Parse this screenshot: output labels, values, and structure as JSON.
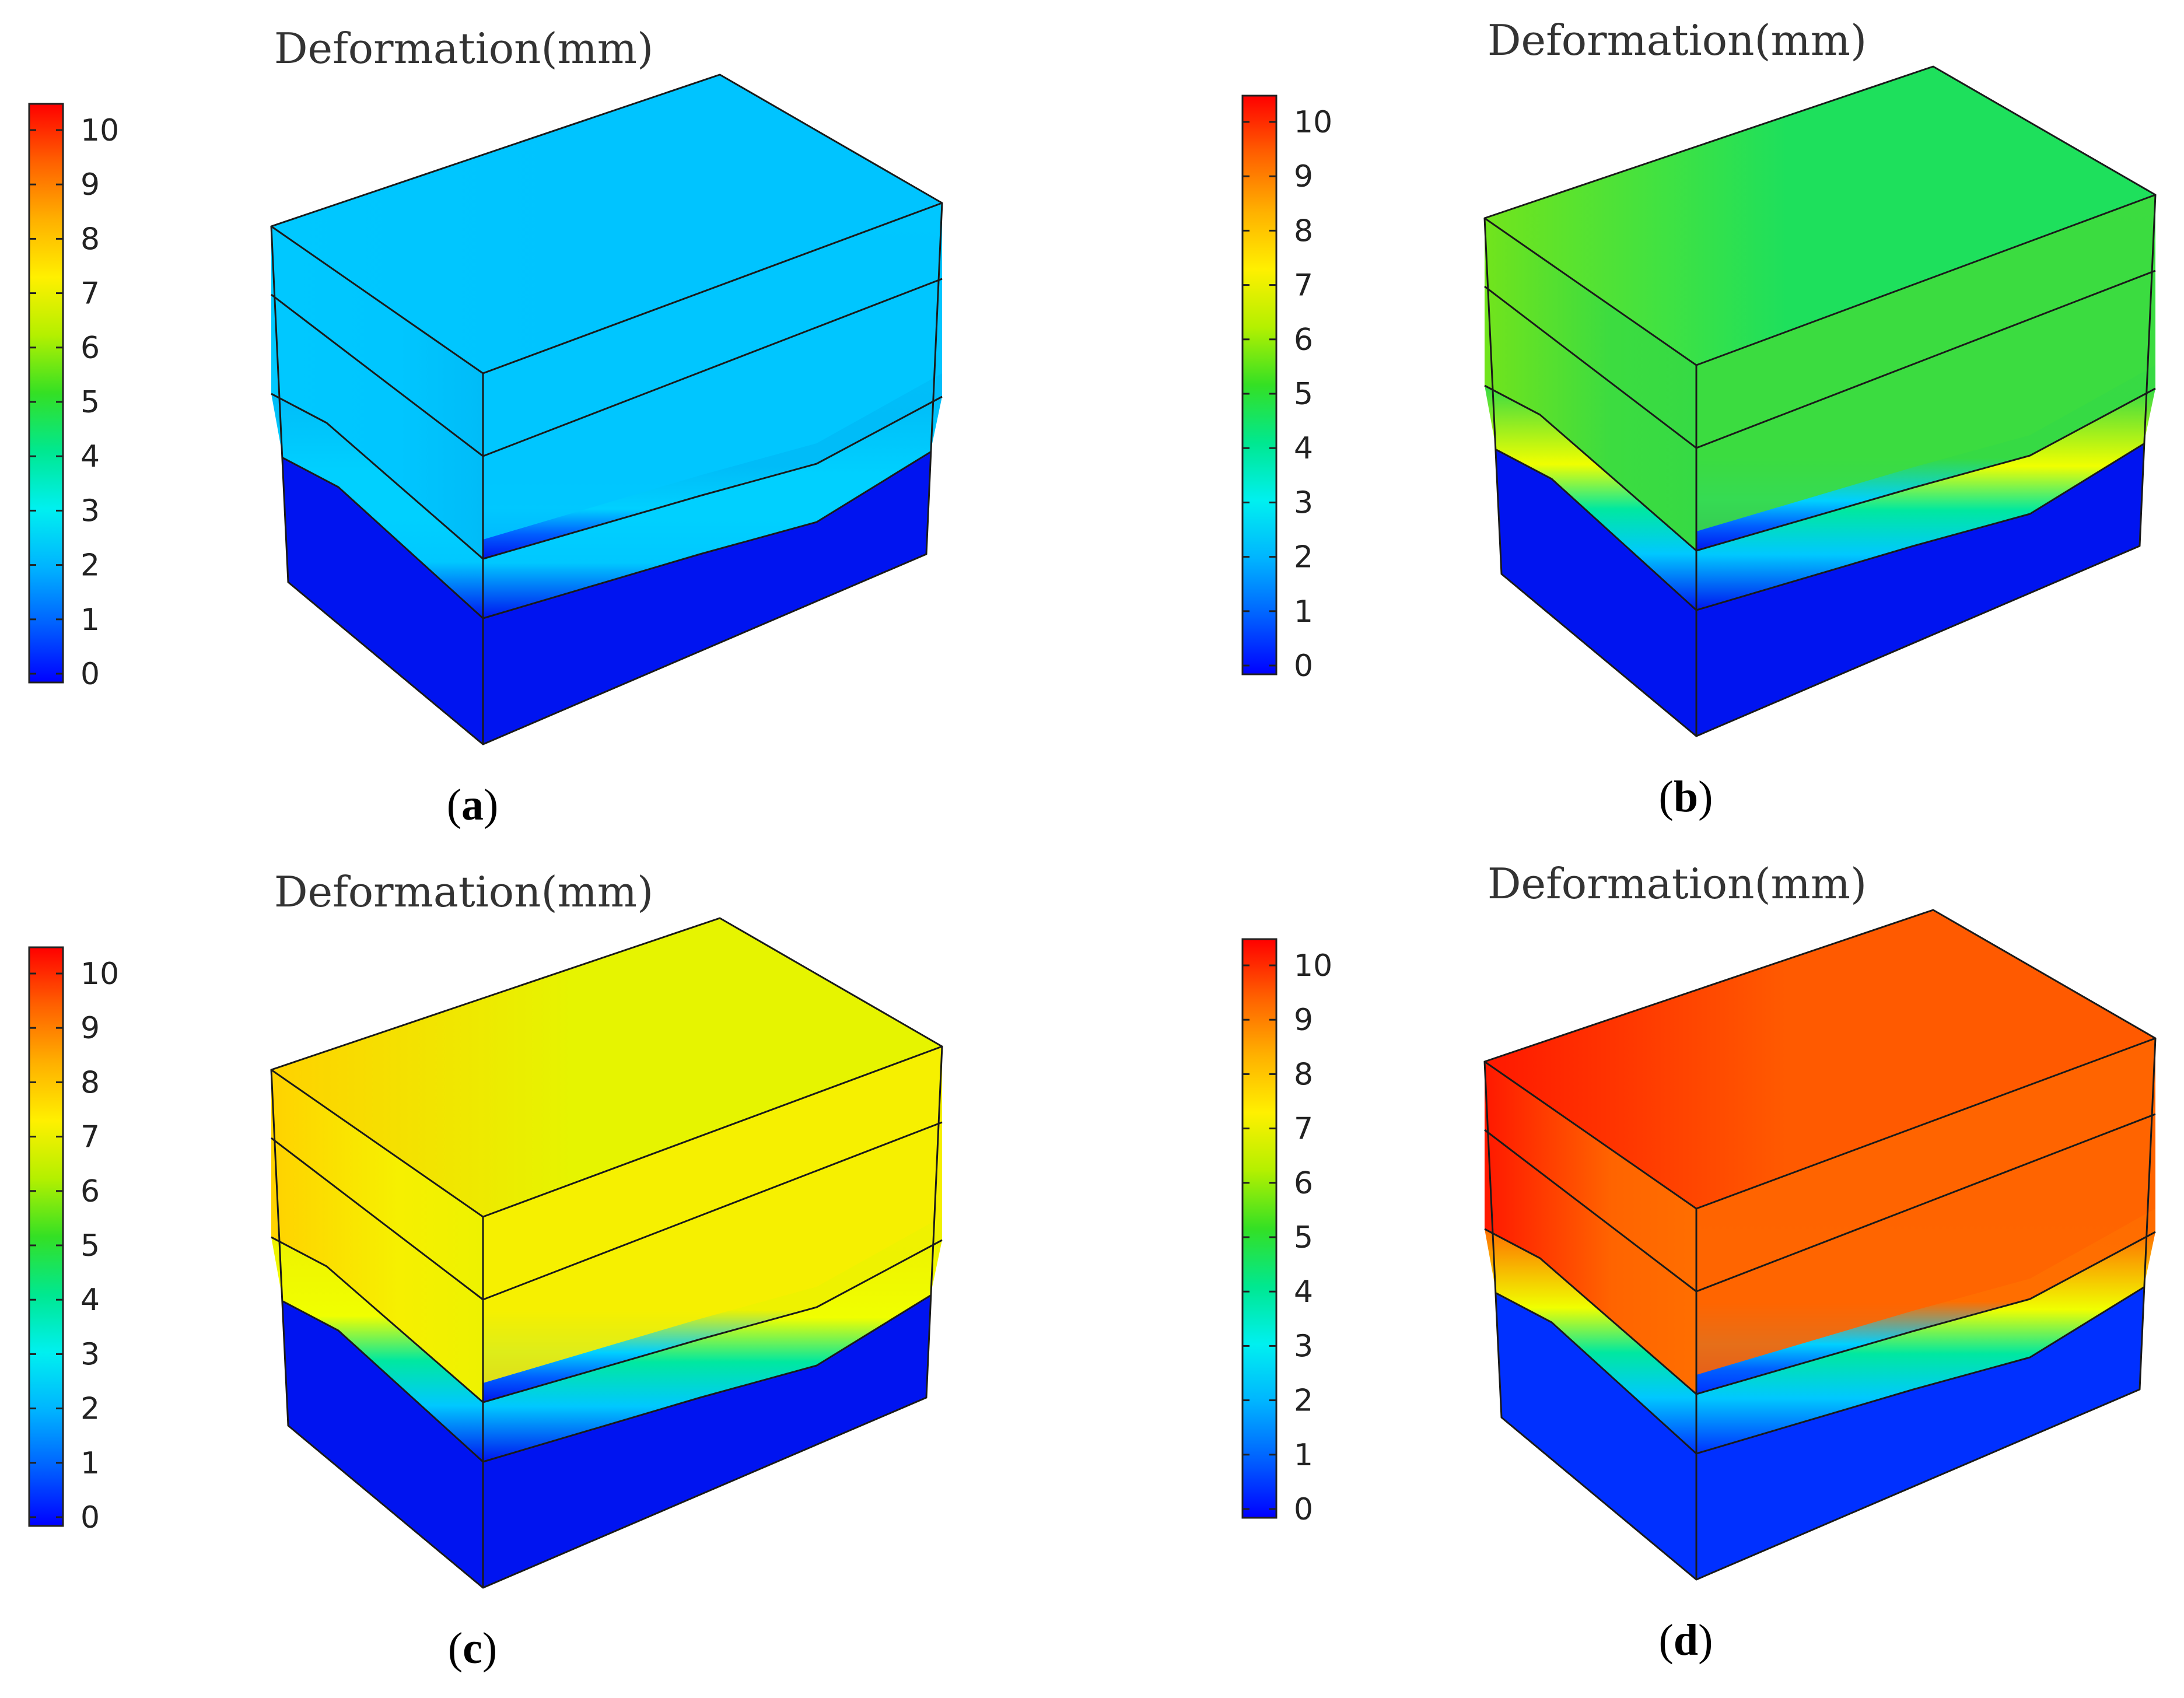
{
  "colorbar": {
    "ticks": [
      "0",
      "1",
      "2",
      "3",
      "4",
      "5",
      "6",
      "7",
      "8",
      "9",
      "10"
    ],
    "stops": [
      "#0000ff",
      "#0060ff",
      "#00b4ff",
      "#00f0f0",
      "#00e890",
      "#34e024",
      "#b4f000",
      "#fff000",
      "#ffb000",
      "#ff6000",
      "#ff0000"
    ]
  },
  "panels": [
    {
      "id": "a",
      "title": "Deformation(mm)",
      "caption_open": "(",
      "caption_letter": "a",
      "caption_close": ")",
      "colors": {
        "top": "#00c4ff",
        "upper": "#00c6ff",
        "lower": "#00bcf8",
        "hot": "#00c8ff",
        "base": "#0014f0"
      }
    },
    {
      "id": "b",
      "title": "Deformation(mm)",
      "caption_open": "(",
      "caption_letter": "b",
      "caption_close": ")",
      "colors": {
        "top": "#1ee05c",
        "upper": "#3cdc40",
        "lower": "#36da44",
        "hot": "#72e41c",
        "base": "#0014f0"
      }
    },
    {
      "id": "c",
      "title": "Deformation(mm)",
      "caption_open": "(",
      "caption_letter": "c",
      "caption_close": ")",
      "colors": {
        "top": "#e6f400",
        "upper": "#f6f000",
        "lower": "#eef200",
        "hot": "#ffd200",
        "base": "#0014f0"
      }
    },
    {
      "id": "d",
      "title": "Deformation(mm)",
      "caption_open": "(",
      "caption_letter": "d",
      "caption_close": ")",
      "colors": {
        "top": "#ff5a00",
        "upper": "#ff6400",
        "lower": "#ff6e00",
        "hot": "#ff1800",
        "base": "#0030ff"
      }
    }
  ]
}
